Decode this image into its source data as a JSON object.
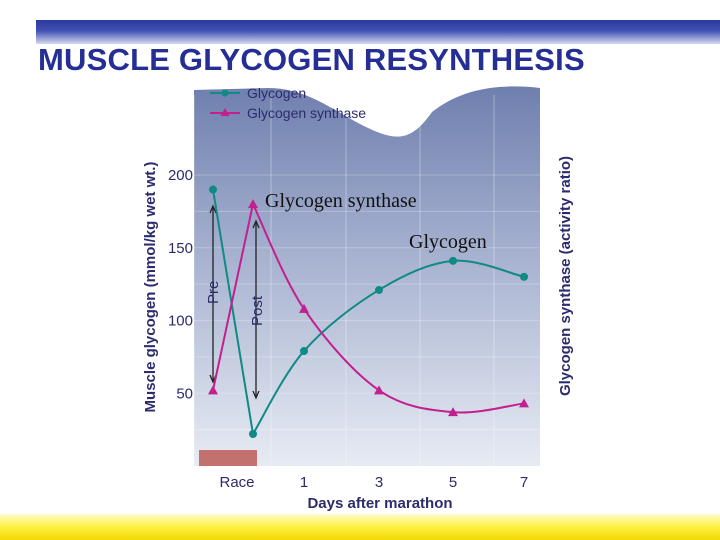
{
  "slide": {
    "title": "MUSCLE GLYCOGEN RESYNTHESIS"
  },
  "colors": {
    "title": "#242e94",
    "glycogen": "#0f8a84",
    "glycogen_synthase": "#c2208e",
    "race_bar": "#c2716e",
    "axis_text": "#2c2c6c"
  },
  "chart_data": {
    "type": "line",
    "title": "",
    "xlabel": "Days after marathon",
    "ylabel": "Muscle glycogen (mmol/kg wet wt.)",
    "ylabel_right": "Glycogen synthase (activity ratio)",
    "x_tick_labels": [
      "Race",
      "1",
      "3",
      "5",
      "7"
    ],
    "y_ticks": [
      50,
      100,
      150,
      200
    ],
    "legend": {
      "placement": "top-left",
      "entries": [
        {
          "label": "Glycogen",
          "marker": "circle"
        },
        {
          "label": "Glycogen synthase",
          "marker": "triangle"
        }
      ]
    },
    "annotations": {
      "pre": "Pre",
      "post": "Post",
      "glycogen_synthase_label": "Glycogen synthase",
      "glycogen_label": "Glycogen"
    },
    "series": [
      {
        "name": "Glycogen",
        "marker": "circle",
        "points": [
          {
            "x": "Pre",
            "y": 190
          },
          {
            "x": "Post",
            "y": 22
          },
          {
            "x": "1",
            "y": 79
          },
          {
            "x": "3",
            "y": 121
          },
          {
            "x": "5",
            "y": 141
          },
          {
            "x": "7",
            "y": 130
          }
        ]
      },
      {
        "name": "Glycogen synthase",
        "marker": "triangle",
        "points": [
          {
            "x": "Pre",
            "y": 52
          },
          {
            "x": "Post",
            "y": 180
          },
          {
            "x": "1",
            "y": 108
          },
          {
            "x": "3",
            "y": 52
          },
          {
            "x": "5",
            "y": 37
          },
          {
            "x": "7",
            "y": 43
          }
        ]
      }
    ]
  }
}
